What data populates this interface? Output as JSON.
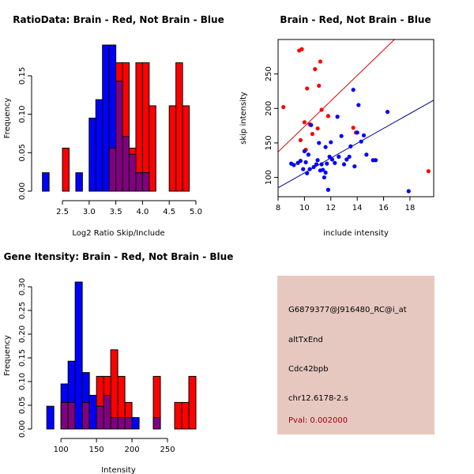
{
  "colors": {
    "red": "#ff0000",
    "blue": "#0000ff",
    "overlap": "#800080",
    "panel_bg": "#e6c8c0",
    "pval_text": "#a00000",
    "red_line": "#dd0000",
    "blue_line": "#000099"
  },
  "chart_data": [
    {
      "type": "bar",
      "title": "RatioData: Brain - Red, Not Brain - Blue",
      "xlabel": "Log2 Ratio Skip/Include",
      "ylabel": "Frequency",
      "xlim": [
        2.1,
        5.0
      ],
      "ylim": [
        0,
        0.19
      ],
      "xticks": [
        2.5,
        3.0,
        3.5,
        4.0,
        4.5,
        5.0
      ],
      "xtick_labels": [
        "2.5",
        "3.0",
        "3.5",
        "4.0",
        "4.5",
        "5.0"
      ],
      "yticks": [
        0.0,
        0.05,
        0.1,
        0.15
      ],
      "ytick_labels": [
        "0.00",
        "0.05",
        "0.10",
        "0.15"
      ],
      "bin_width": 0.125,
      "series": [
        {
          "name": "Not Brain",
          "color": "blue",
          "bins": [
            2.125,
            2.25,
            2.375,
            2.5,
            2.625,
            2.75,
            2.875,
            3.0,
            3.125,
            3.25,
            3.375,
            3.5,
            3.625,
            3.75,
            3.875,
            4.0
          ],
          "values": [
            0.024,
            0,
            0,
            0,
            0,
            0.024,
            0,
            0.095,
            0.119,
            0.19,
            0.19,
            0.143,
            0.071,
            0.048,
            0.024,
            0.024
          ]
        },
        {
          "name": "Brain",
          "color": "red",
          "bins": [
            2.5,
            3.375,
            3.5,
            3.625,
            3.75,
            3.875,
            4.0,
            4.125,
            4.25,
            4.375,
            4.5,
            4.625,
            4.75
          ],
          "values": [
            0.056,
            0.056,
            0.167,
            0.167,
            0.056,
            0.167,
            0.167,
            0.111,
            0,
            0,
            0.111,
            0.167,
            0.111
          ]
        }
      ]
    },
    {
      "type": "scatter",
      "title": "Brain - Red, Not Brain - Blue",
      "xlabel": "include intensity",
      "ylabel": "skip intensity",
      "xlim": [
        8,
        19.8
      ],
      "ylim": [
        72,
        300
      ],
      "xticks": [
        8,
        10,
        12,
        14,
        16,
        18
      ],
      "xtick_labels": [
        "8",
        "10",
        "12",
        "14",
        "16",
        "18"
      ],
      "yticks": [
        100,
        150,
        200,
        250
      ],
      "ytick_labels": [
        "100",
        "150",
        "200",
        "250"
      ],
      "series": [
        {
          "name": "Brain",
          "color": "red",
          "x": [
            8.4,
            9.6,
            9.8,
            9.7,
            10.0,
            10.1,
            10.2,
            10.4,
            10.6,
            10.8,
            11.0,
            11.1,
            11.2,
            11.3,
            11.8,
            13.7,
            13.9,
            19.4
          ],
          "y": [
            202,
            284,
            286,
            154,
            180,
            140,
            229,
            177,
            163,
            257,
            171,
            233,
            268,
            198,
            189,
            172,
            165,
            109
          ],
          "fit": {
            "x": [
              8,
              19.8
            ],
            "y": [
              137,
              355
            ]
          }
        },
        {
          "name": "Not Brain",
          "color": "blue",
          "x": [
            9.0,
            9.2,
            9.5,
            9.7,
            9.9,
            10.0,
            10.1,
            10.2,
            10.3,
            10.4,
            10.5,
            10.7,
            10.9,
            11.0,
            11.1,
            11.2,
            11.3,
            11.4,
            11.5,
            11.6,
            11.6,
            11.7,
            11.8,
            11.9,
            12.0,
            12.1,
            12.3,
            12.5,
            12.6,
            12.8,
            13.0,
            13.2,
            13.4,
            13.5,
            13.7,
            13.8,
            14.0,
            14.1,
            14.3,
            14.5,
            14.7,
            15.2,
            15.4,
            16.3,
            17.9
          ],
          "y": [
            120,
            118,
            121,
            124,
            112,
            138,
            122,
            106,
            133,
            112,
            176,
            115,
            119,
            125,
            150,
            110,
            119,
            111,
            100,
            107,
            144,
            120,
            82,
            130,
            151,
            126,
            121,
            188,
            130,
            160,
            119,
            126,
            130,
            145,
            227,
            116,
            165,
            205,
            152,
            161,
            133,
            125,
            125,
            195,
            80
          ],
          "fit": {
            "x": [
              8,
              19.8
            ],
            "y": [
              85,
              212
            ]
          }
        }
      ]
    },
    {
      "type": "bar",
      "title": "Gene Itensity: Brain - Red, Not Brain - Blue",
      "xlabel": "Intensity",
      "ylabel": "Frequency",
      "xlim": [
        72,
        290
      ],
      "ylim": [
        0,
        0.31
      ],
      "xticks": [
        100,
        150,
        200,
        250
      ],
      "xtick_labels": [
        "100",
        "150",
        "200",
        "250"
      ],
      "yticks": [
        0.0,
        0.05,
        0.1,
        0.15,
        0.2,
        0.25,
        0.3
      ],
      "ytick_labels": [
        "0.00",
        "0.05",
        "0.10",
        "0.15",
        "0.20",
        "0.25",
        "0.30"
      ],
      "bin_width": 10,
      "series": [
        {
          "name": "Not Brain",
          "color": "blue",
          "bins": [
            80,
            90,
            100,
            110,
            120,
            130,
            140,
            150,
            160,
            170,
            180,
            190,
            200,
            210,
            220,
            230
          ],
          "values": [
            0.048,
            0,
            0.095,
            0.143,
            0.31,
            0.119,
            0.071,
            0.048,
            0.071,
            0.024,
            0.024,
            0.024,
            0.024,
            0,
            0,
            0.024
          ]
        },
        {
          "name": "Brain",
          "color": "red",
          "bins": [
            100,
            110,
            120,
            130,
            140,
            150,
            160,
            170,
            180,
            190,
            200,
            210,
            220,
            230,
            240,
            250,
            260,
            270,
            280
          ],
          "values": [
            0.056,
            0.056,
            0,
            0.056,
            0,
            0.111,
            0.111,
            0.167,
            0.111,
            0.056,
            0,
            0,
            0,
            0.111,
            0,
            0,
            0.056,
            0.056,
            0.111
          ]
        }
      ]
    }
  ],
  "info": {
    "probe": "G6879377@J916480_RC@i_at",
    "event_type": "altTxEnd",
    "gene": "Cdc42bpb",
    "location": "chr12.6178-2.s",
    "pval": "Pval: 0.002000"
  }
}
